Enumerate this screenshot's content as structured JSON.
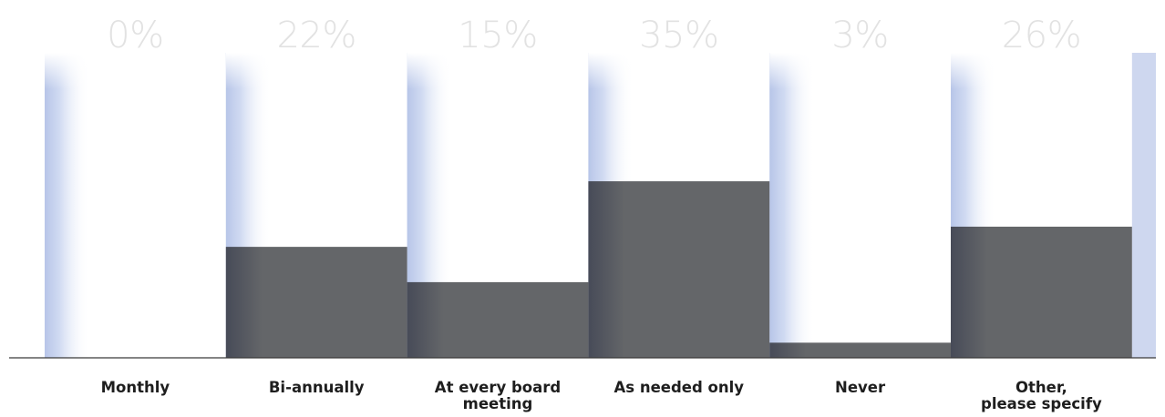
{
  "chart_data": {
    "type": "bar",
    "categories": [
      [
        "Monthly"
      ],
      [
        "Bi-annually"
      ],
      [
        "At every board",
        "meeting"
      ],
      [
        "As needed only"
      ],
      [
        "Never"
      ],
      [
        "Other,",
        "please specify"
      ]
    ],
    "values": [
      0,
      22,
      15,
      35,
      3,
      26
    ],
    "value_labels": [
      "0%",
      "22%",
      "15%",
      "35%",
      "3%",
      "26%"
    ],
    "unit": "%",
    "title": "",
    "xlabel": "",
    "ylabel": "",
    "ylim": [
      0,
      62
    ],
    "grid": false,
    "legend": "none",
    "colors": {
      "bar": "#646669",
      "bar_shade": "#474b58",
      "column_shade": "#b7c5e8",
      "baseline": "#3a3a3a",
      "value_label": "#e2e2e2",
      "category_label": "#1e1e1e"
    }
  }
}
